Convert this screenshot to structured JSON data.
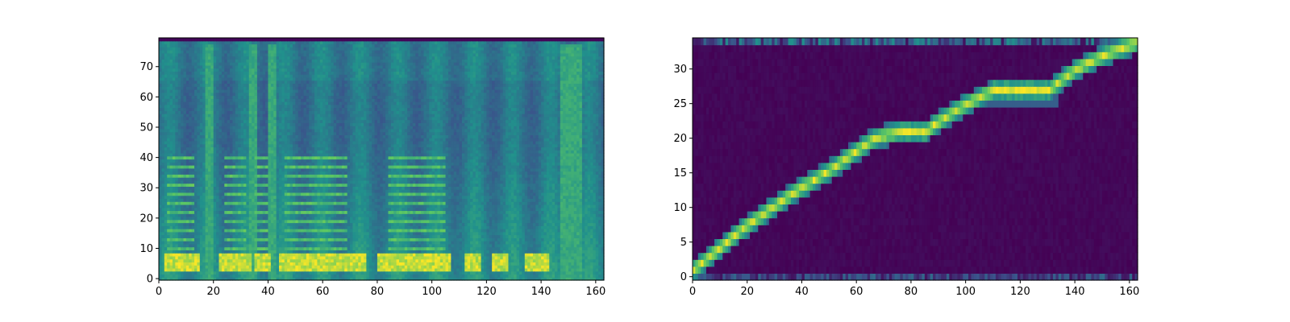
{
  "colors": {
    "background": "#ffffff",
    "axis": "#000000",
    "colormap": [
      "#440154",
      "#3b528b",
      "#21918c",
      "#5ec962",
      "#fde725"
    ]
  },
  "chart_data": [
    {
      "type": "heatmap",
      "colormap": "viridis",
      "title": "",
      "xlabel": "",
      "ylabel": "",
      "xlim": [
        0,
        163
      ],
      "ylim": [
        0,
        80
      ],
      "n_rows": 80,
      "n_cols": 163,
      "xticks": [
        0,
        20,
        40,
        60,
        80,
        100,
        120,
        140,
        160
      ],
      "yticks": [
        0,
        10,
        20,
        30,
        40,
        50,
        60,
        70
      ],
      "xtick_labels": [
        "0",
        "20",
        "40",
        "60",
        "80",
        "100",
        "120",
        "140",
        "160"
      ],
      "ytick_labels": [
        "0",
        "10",
        "20",
        "30",
        "40",
        "50",
        "60",
        "70"
      ],
      "low_band_segments": [
        [
          2,
          14
        ],
        [
          22,
          33
        ],
        [
          35,
          40
        ],
        [
          44,
          75
        ],
        [
          80,
          106
        ],
        [
          112,
          117
        ],
        [
          122,
          127
        ],
        [
          134,
          142
        ]
      ],
      "harmonic_segments": [
        [
          3,
          12
        ],
        [
          24,
          31
        ],
        [
          35,
          39
        ],
        [
          46,
          68
        ],
        [
          84,
          104
        ]
      ],
      "harmonic_rows": [
        10,
        13,
        16,
        19,
        22,
        25,
        28,
        31,
        34,
        37,
        40
      ],
      "bright_columns": [
        18,
        34,
        41,
        148,
        151,
        153
      ]
    },
    {
      "type": "heatmap",
      "colormap": "viridis",
      "title": "",
      "xlabel": "",
      "ylabel": "",
      "xlim": [
        0,
        163
      ],
      "ylim": [
        0,
        35
      ],
      "n_rows": 35,
      "n_cols": 163,
      "xticks": [
        0,
        20,
        40,
        60,
        80,
        100,
        120,
        140,
        160
      ],
      "yticks": [
        0,
        5,
        10,
        15,
        20,
        25,
        30
      ],
      "xtick_labels": [
        "0",
        "20",
        "40",
        "60",
        "80",
        "100",
        "120",
        "140",
        "160"
      ],
      "ytick_labels": [
        "0",
        "5",
        "10",
        "15",
        "20",
        "25",
        "30"
      ],
      "alignment_path": [
        [
          0,
          1
        ],
        [
          18,
          7
        ],
        [
          36,
          12
        ],
        [
          52,
          16
        ],
        [
          66,
          20
        ],
        [
          75,
          21
        ],
        [
          85,
          21
        ],
        [
          88,
          22
        ],
        [
          100,
          25
        ],
        [
          110,
          27
        ],
        [
          130,
          27
        ],
        [
          140,
          30
        ],
        [
          150,
          32
        ],
        [
          163,
          34
        ]
      ],
      "secondary_path": [
        [
          98,
          25
        ],
        [
          110,
          26
        ],
        [
          133,
          26
        ]
      ],
      "top_noise_row": 34,
      "bottom_noise_row": 0
    }
  ]
}
